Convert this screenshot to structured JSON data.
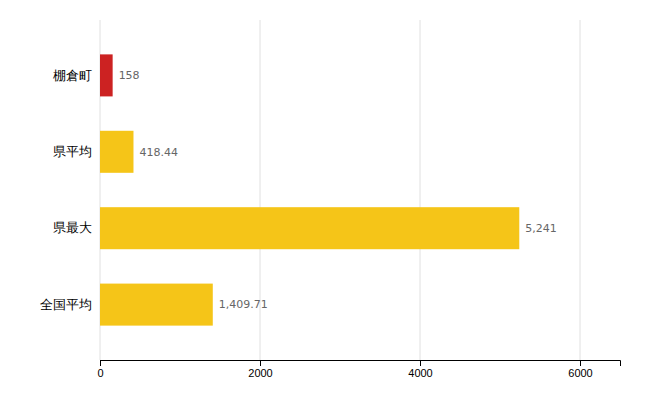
{
  "chart_data": {
    "type": "bar",
    "orientation": "horizontal",
    "categories": [
      "棚倉町",
      "県平均",
      "県最大",
      "全国平均"
    ],
    "values": [
      158,
      418.44,
      5241,
      1409.71
    ],
    "value_labels": [
      "158",
      "418.44",
      "5,241",
      "1,409.71"
    ],
    "colors": [
      "#cc2222",
      "#f5c518",
      "#f5c518",
      "#f5c518"
    ],
    "xlim": [
      0,
      6500
    ],
    "xticks": [
      0,
      2000,
      4000,
      6000
    ],
    "grid": true,
    "data_labels": true
  }
}
